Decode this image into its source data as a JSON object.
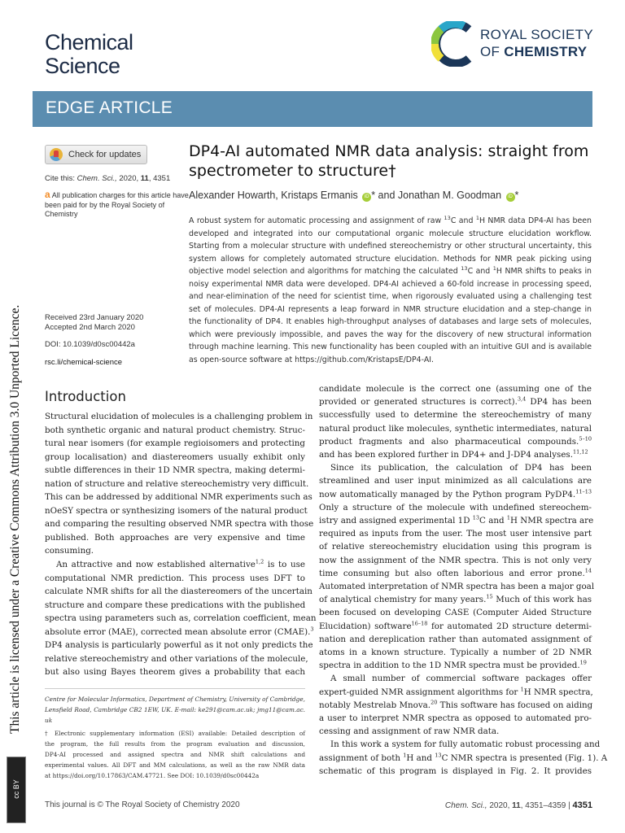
{
  "header": {
    "journal_line1": "Chemical",
    "journal_line2": "Science",
    "publisher_line1": "ROYAL SOCIETY",
    "publisher_line2_prefix": "OF",
    "publisher_line2_bold": "CHEMISTRY",
    "article_type": "EDGE ARTICLE"
  },
  "colors": {
    "band": "#5b8db0",
    "journal": "#1c2b45",
    "orcid": "#a6ce39"
  },
  "sidebar": {
    "check_updates": "Check for updates",
    "cite_label": "Cite this:",
    "cite_journal": "Chem. Sci.,",
    "cite_year": "2020,",
    "cite_volume": "11",
    "cite_page": ", 4351",
    "oa_text": "All publication charges for this article have been paid for by the Royal Society of Chemistry",
    "received": "Received 23rd January 2020",
    "accepted": "Accepted 2nd March 2020",
    "doi": "DOI: 10.1039/d0sc00442a",
    "link": "rsc.li/chemical-science"
  },
  "article": {
    "title_line1": "DP4-AI automated NMR data analysis: straight from",
    "title_line2": "spectrometer to structure†",
    "author1": "Alexander Howarth, Kristaps Ermanis",
    "author_sep": "* and Jonathan M. Goodman",
    "author_end": "*",
    "orcid_label": "iD"
  },
  "abstract_lines": [
    "A robust system for automatic processing and assignment of raw ^{13}C and ^{1}H NMR data DP4-AI has been",
    "developed and integrated into our computational organic molecule structure elucidation workflow.",
    "Starting from a molecular structure with undefined stereochemistry or other structural uncertainty, this",
    "system allows for completely automated structure elucidation. Methods for NMR peak picking using",
    "objective model selection and algorithms for matching the calculated ^{13}C and ^{1}H NMR shifts to peaks in",
    "noisy experimental NMR data were developed. DP4-AI achieved a 60-fold increase in processing speed,",
    "and near-elimination of the need for scientist time, when rigorously evaluated using a challenging test",
    "set of molecules. DP4-AI represents a leap forward in NMR structure elucidation and a step-change in",
    "the functionality of DP4. It enables high-throughput analyses of databases and large sets of molecules,",
    "which were previously impossible, and paves the way for the discovery of new structural information",
    "through machine learning. This new functionality has been coupled with an intuitive GUI and is available",
    "as open-source software at https://github.com/KristapsE/DP4-AI."
  ],
  "introduction": {
    "heading": "Introduction",
    "left_paragraphs": [
      [
        "Structural elucidation of molecules is a challenging problem in",
        "both synthetic organic and natural product chemistry. Struc-",
        "tural near isomers (for example regioisomers and protecting",
        "group localisation) and diastereomers usually exhibit only",
        "subtle differences in their 1D NMR spectra, making determi-",
        "nation of structure and relative stereochemistry very difficult.",
        "This can be addressed by additional NMR experiments such as",
        "nOeSY spectra or synthesizing isomers of the natural product",
        "and comparing the resulting observed NMR spectra with those",
        "published. Both approaches are very expensive and time",
        "consuming."
      ],
      [
        "An attractive and now established alternative^{1,2} is to use",
        "computational NMR prediction. This process uses DFT to",
        "calculate NMR shifts for all the diastereomers of the uncertain",
        "structure and compare these predications with the published",
        "spectra using parameters such as, correlation coefficient, mean",
        "absolute error (MAE), corrected mean absolute error (CMAE).^{3}",
        "DP4 analysis is particularly powerful as it not only predicts the",
        "relative stereochemistry and other variations of the molecule,",
        "but also using Bayes theorem gives a probability that each"
      ]
    ],
    "right_paragraphs": [
      [
        "candidate molecule is the correct one (assuming one of the",
        "provided or generated structures is correct).^{3,4} DP4 has been",
        "successfully used to determine the stereochemistry of many",
        "natural product like molecules, synthetic intermediates, natural",
        "product fragments and also pharmaceutical compounds.^{5–10}",
        "and has been explored further in DP4+ and J-DP4 analyses.^{11,12}"
      ],
      [
        "Since its publication, the calculation of DP4 has been",
        "streamlined and user input minimized as all calculations are",
        "now automatically managed by the Python program PyDP4.^{11–13}",
        "Only a structure of the molecule with undefined stereochem-",
        "istry and assigned experimental 1D ^{13}C and ^{1}H NMR spectra are",
        "required as inputs from the user. The most user intensive part",
        "of relative stereochemistry elucidation using this program is",
        "now the assignment of the NMR spectra. This is not only very",
        "time consuming but also often laborious and error prone.^{14}",
        "Automated interpretation of NMR spectra has been a major goal",
        "of analytical chemistry for many years.^{15} Much of this work has",
        "been focused on developing CASE (Computer Aided Structure",
        "Elucidation) software^{16–18} for automated 2D structure determi-",
        "nation and dereplication rather than automated assignment of",
        "atoms in a known structure. Typically a number of 2D NMR",
        "spectra in addition to the 1D NMR spectra must be provided.^{19}"
      ],
      [
        "A small number of commercial software packages offer",
        "expert-guided NMR assignment algorithms for ^{1}H NMR spectra,",
        "notably Mestrelab Mnova.^{20} This software has focused on aiding",
        "a user to interpret NMR spectra as opposed to automated pro-",
        "cessing and assignment of raw NMR data."
      ],
      [
        "In this work a system for fully automatic robust processing and",
        "assignment of both ^{1}H and ^{13}C NMR spectra is presented (Fig. 1). A",
        "schematic of this program is displayed in Fig. 2. It provides"
      ]
    ]
  },
  "footnotes": {
    "affiliation_lines": [
      "Centre for Molecular Informatics, Department of Chemistry, University of Cambridge,",
      "Lensfield Road, Cambridge CB2 1EW, UK. E-mail: ke291@cam.ac.uk; jmg11@cam.ac.",
      "uk"
    ],
    "esi_lines": [
      "† Electronic supplementary information (ESI) available: Detailed description of",
      "the program, the full results from the program evaluation and discussion,",
      "DP4-AI processed and assigned spectra and NMR shift calculations and",
      "experimental values. All DFT and MM calculations, as well as the raw NMR data",
      "at https://doi.org/10.17863/CAM.47721. See DOI: 10.1039/d0sc00442a"
    ]
  },
  "footer": {
    "left": "This journal is © The Royal Society of Chemistry 2020",
    "right_journal": "Chem. Sci.,",
    "right_year": "2020,",
    "right_volume": "11",
    "right_pages": ", 4351–4359 |",
    "page_number": "4351"
  },
  "license": {
    "text": "This article is licensed under a Creative Commons Attribution 3.0 Unported Licence.",
    "badge": "cc BY"
  }
}
